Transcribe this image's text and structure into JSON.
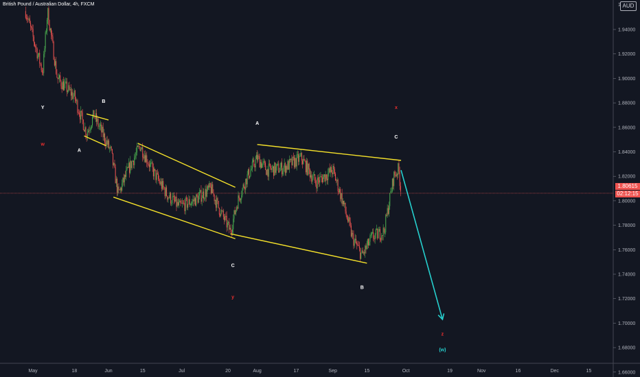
{
  "header": {
    "title": "British Pound / Australian Dollar, 4h, FXCM",
    "currency_badge": "AUD"
  },
  "price_axis": {
    "current_price": "1.80615",
    "countdown": "02:12:15"
  },
  "colors": {
    "background": "#131722",
    "up_candle": "#4caf50",
    "down_candle": "#ef5350",
    "trendline": "#f5e12a",
    "projection_arrow": "#26d0ce",
    "label_white": "#ffffff",
    "label_red": "#ef2f2f",
    "label_cyan": "#26d0ce",
    "price_line": "#ef5350",
    "axis_text": "#b2b5be"
  },
  "chart_data": {
    "type": "candlestick",
    "symbol": "GBPAUD",
    "timeframe": "4h",
    "ylim": [
      1.652,
      1.965
    ],
    "x_ticks": [
      {
        "label": "May",
        "date": "2020-05-01"
      },
      {
        "label": "18",
        "date": "2020-05-18"
      },
      {
        "label": "Jun",
        "date": "2020-06-01"
      },
      {
        "label": "15",
        "date": "2020-06-15"
      },
      {
        "label": "Jul",
        "date": "2020-07-01"
      },
      {
        "label": "20",
        "date": "2020-07-20"
      },
      {
        "label": "Aug",
        "date": "2020-08-01"
      },
      {
        "label": "17",
        "date": "2020-08-17"
      },
      {
        "label": "Sep",
        "date": "2020-09-01"
      },
      {
        "label": "15",
        "date": "2020-09-15"
      },
      {
        "label": "Oct",
        "date": "2020-10-01"
      },
      {
        "label": "19",
        "date": "2020-10-19"
      },
      {
        "label": "Nov",
        "date": "2020-11-01"
      },
      {
        "label": "16",
        "date": "2020-11-16"
      },
      {
        "label": "Dec",
        "date": "2020-12-01"
      },
      {
        "label": "15",
        "date": "2020-12-15"
      }
    ],
    "y_ticks": [
      "1.94000",
      "1.92000",
      "1.90000",
      "1.88000",
      "1.86000",
      "1.84000",
      "1.82000",
      "1.80000",
      "1.78000",
      "1.76000",
      "1.74000",
      "1.72000",
      "1.70000",
      "1.68000",
      "1.66000"
    ],
    "y_top_label": "1.9",
    "price_path": [
      {
        "date": "2020-04-28",
        "price": 1.955
      },
      {
        "date": "2020-05-05",
        "price": 1.905
      },
      {
        "date": "2020-05-07",
        "price": 1.955
      },
      {
        "date": "2020-05-11",
        "price": 1.9
      },
      {
        "date": "2020-05-18",
        "price": 1.885
      },
      {
        "date": "2020-05-23",
        "price": 1.855
      },
      {
        "date": "2020-05-26",
        "price": 1.87
      },
      {
        "date": "2020-05-29",
        "price": 1.857
      },
      {
        "date": "2020-06-02",
        "price": 1.84
      },
      {
        "date": "2020-06-05",
        "price": 1.805
      },
      {
        "date": "2020-06-09",
        "price": 1.825
      },
      {
        "date": "2020-06-14",
        "price": 1.845
      },
      {
        "date": "2020-06-19",
        "price": 1.825
      },
      {
        "date": "2020-06-25",
        "price": 1.805
      },
      {
        "date": "2020-06-30",
        "price": 1.795
      },
      {
        "date": "2020-07-06",
        "price": 1.8
      },
      {
        "date": "2020-07-13",
        "price": 1.81
      },
      {
        "date": "2020-07-16",
        "price": 1.795
      },
      {
        "date": "2020-07-21",
        "price": 1.775
      },
      {
        "date": "2020-07-24",
        "price": 1.8
      },
      {
        "date": "2020-07-28",
        "price": 1.82
      },
      {
        "date": "2020-08-01",
        "price": 1.835
      },
      {
        "date": "2020-08-05",
        "price": 1.825
      },
      {
        "date": "2020-08-12",
        "price": 1.827
      },
      {
        "date": "2020-08-19",
        "price": 1.835
      },
      {
        "date": "2020-08-25",
        "price": 1.815
      },
      {
        "date": "2020-09-01",
        "price": 1.825
      },
      {
        "date": "2020-09-05",
        "price": 1.8
      },
      {
        "date": "2020-09-09",
        "price": 1.77
      },
      {
        "date": "2020-09-13",
        "price": 1.755
      },
      {
        "date": "2020-09-17",
        "price": 1.77
      },
      {
        "date": "2020-09-22",
        "price": 1.775
      },
      {
        "date": "2020-09-26",
        "price": 1.82
      },
      {
        "date": "2020-09-28",
        "price": 1.826
      },
      {
        "date": "2020-09-29",
        "price": 1.806
      }
    ],
    "trendlines": [
      {
        "from": {
          "date": "2020-05-23",
          "price": 1.871
        },
        "to": {
          "date": "2020-06-01",
          "price": 1.866
        }
      },
      {
        "from": {
          "date": "2020-05-22",
          "price": 1.853
        },
        "to": {
          "date": "2020-05-31",
          "price": 1.845
        }
      },
      {
        "from": {
          "date": "2020-06-13",
          "price": 1.847
        },
        "to": {
          "date": "2020-07-23",
          "price": 1.811
        }
      },
      {
        "from": {
          "date": "2020-06-03",
          "price": 1.803
        },
        "to": {
          "date": "2020-07-23",
          "price": 1.769
        }
      },
      {
        "from": {
          "date": "2020-07-21",
          "price": 1.773
        },
        "to": {
          "date": "2020-09-15",
          "price": 1.749
        }
      },
      {
        "from": {
          "date": "2020-08-01",
          "price": 1.846
        },
        "to": {
          "date": "2020-09-29",
          "price": 1.833
        }
      }
    ],
    "projection_arrow": {
      "from": {
        "date": "2020-09-29",
        "price": 1.825
      },
      "to": {
        "date": "2020-10-16",
        "price": 1.703
      }
    },
    "annotations": [
      {
        "text": "Y",
        "date": "2020-05-05",
        "price": 1.875,
        "color": "white"
      },
      {
        "text": "w",
        "date": "2020-05-05",
        "price": 1.845,
        "color": "red"
      },
      {
        "text": "B",
        "date": "2020-05-30",
        "price": 1.88,
        "color": "white"
      },
      {
        "text": "A",
        "date": "2020-05-20",
        "price": 1.84,
        "color": "white"
      },
      {
        "text": "A",
        "date": "2020-08-01",
        "price": 1.862,
        "color": "white"
      },
      {
        "text": "C",
        "date": "2020-07-22",
        "price": 1.746,
        "color": "white"
      },
      {
        "text": "y",
        "date": "2020-07-22",
        "price": 1.72,
        "color": "red"
      },
      {
        "text": "B",
        "date": "2020-09-13",
        "price": 1.728,
        "color": "white"
      },
      {
        "text": "x",
        "date": "2020-09-27",
        "price": 1.875,
        "color": "red"
      },
      {
        "text": "C",
        "date": "2020-09-27",
        "price": 1.851,
        "color": "white"
      },
      {
        "text": "z",
        "date": "2020-10-16",
        "price": 1.69,
        "color": "red"
      },
      {
        "text": "(w)",
        "date": "2020-10-16",
        "price": 1.677,
        "color": "cyan"
      }
    ]
  }
}
